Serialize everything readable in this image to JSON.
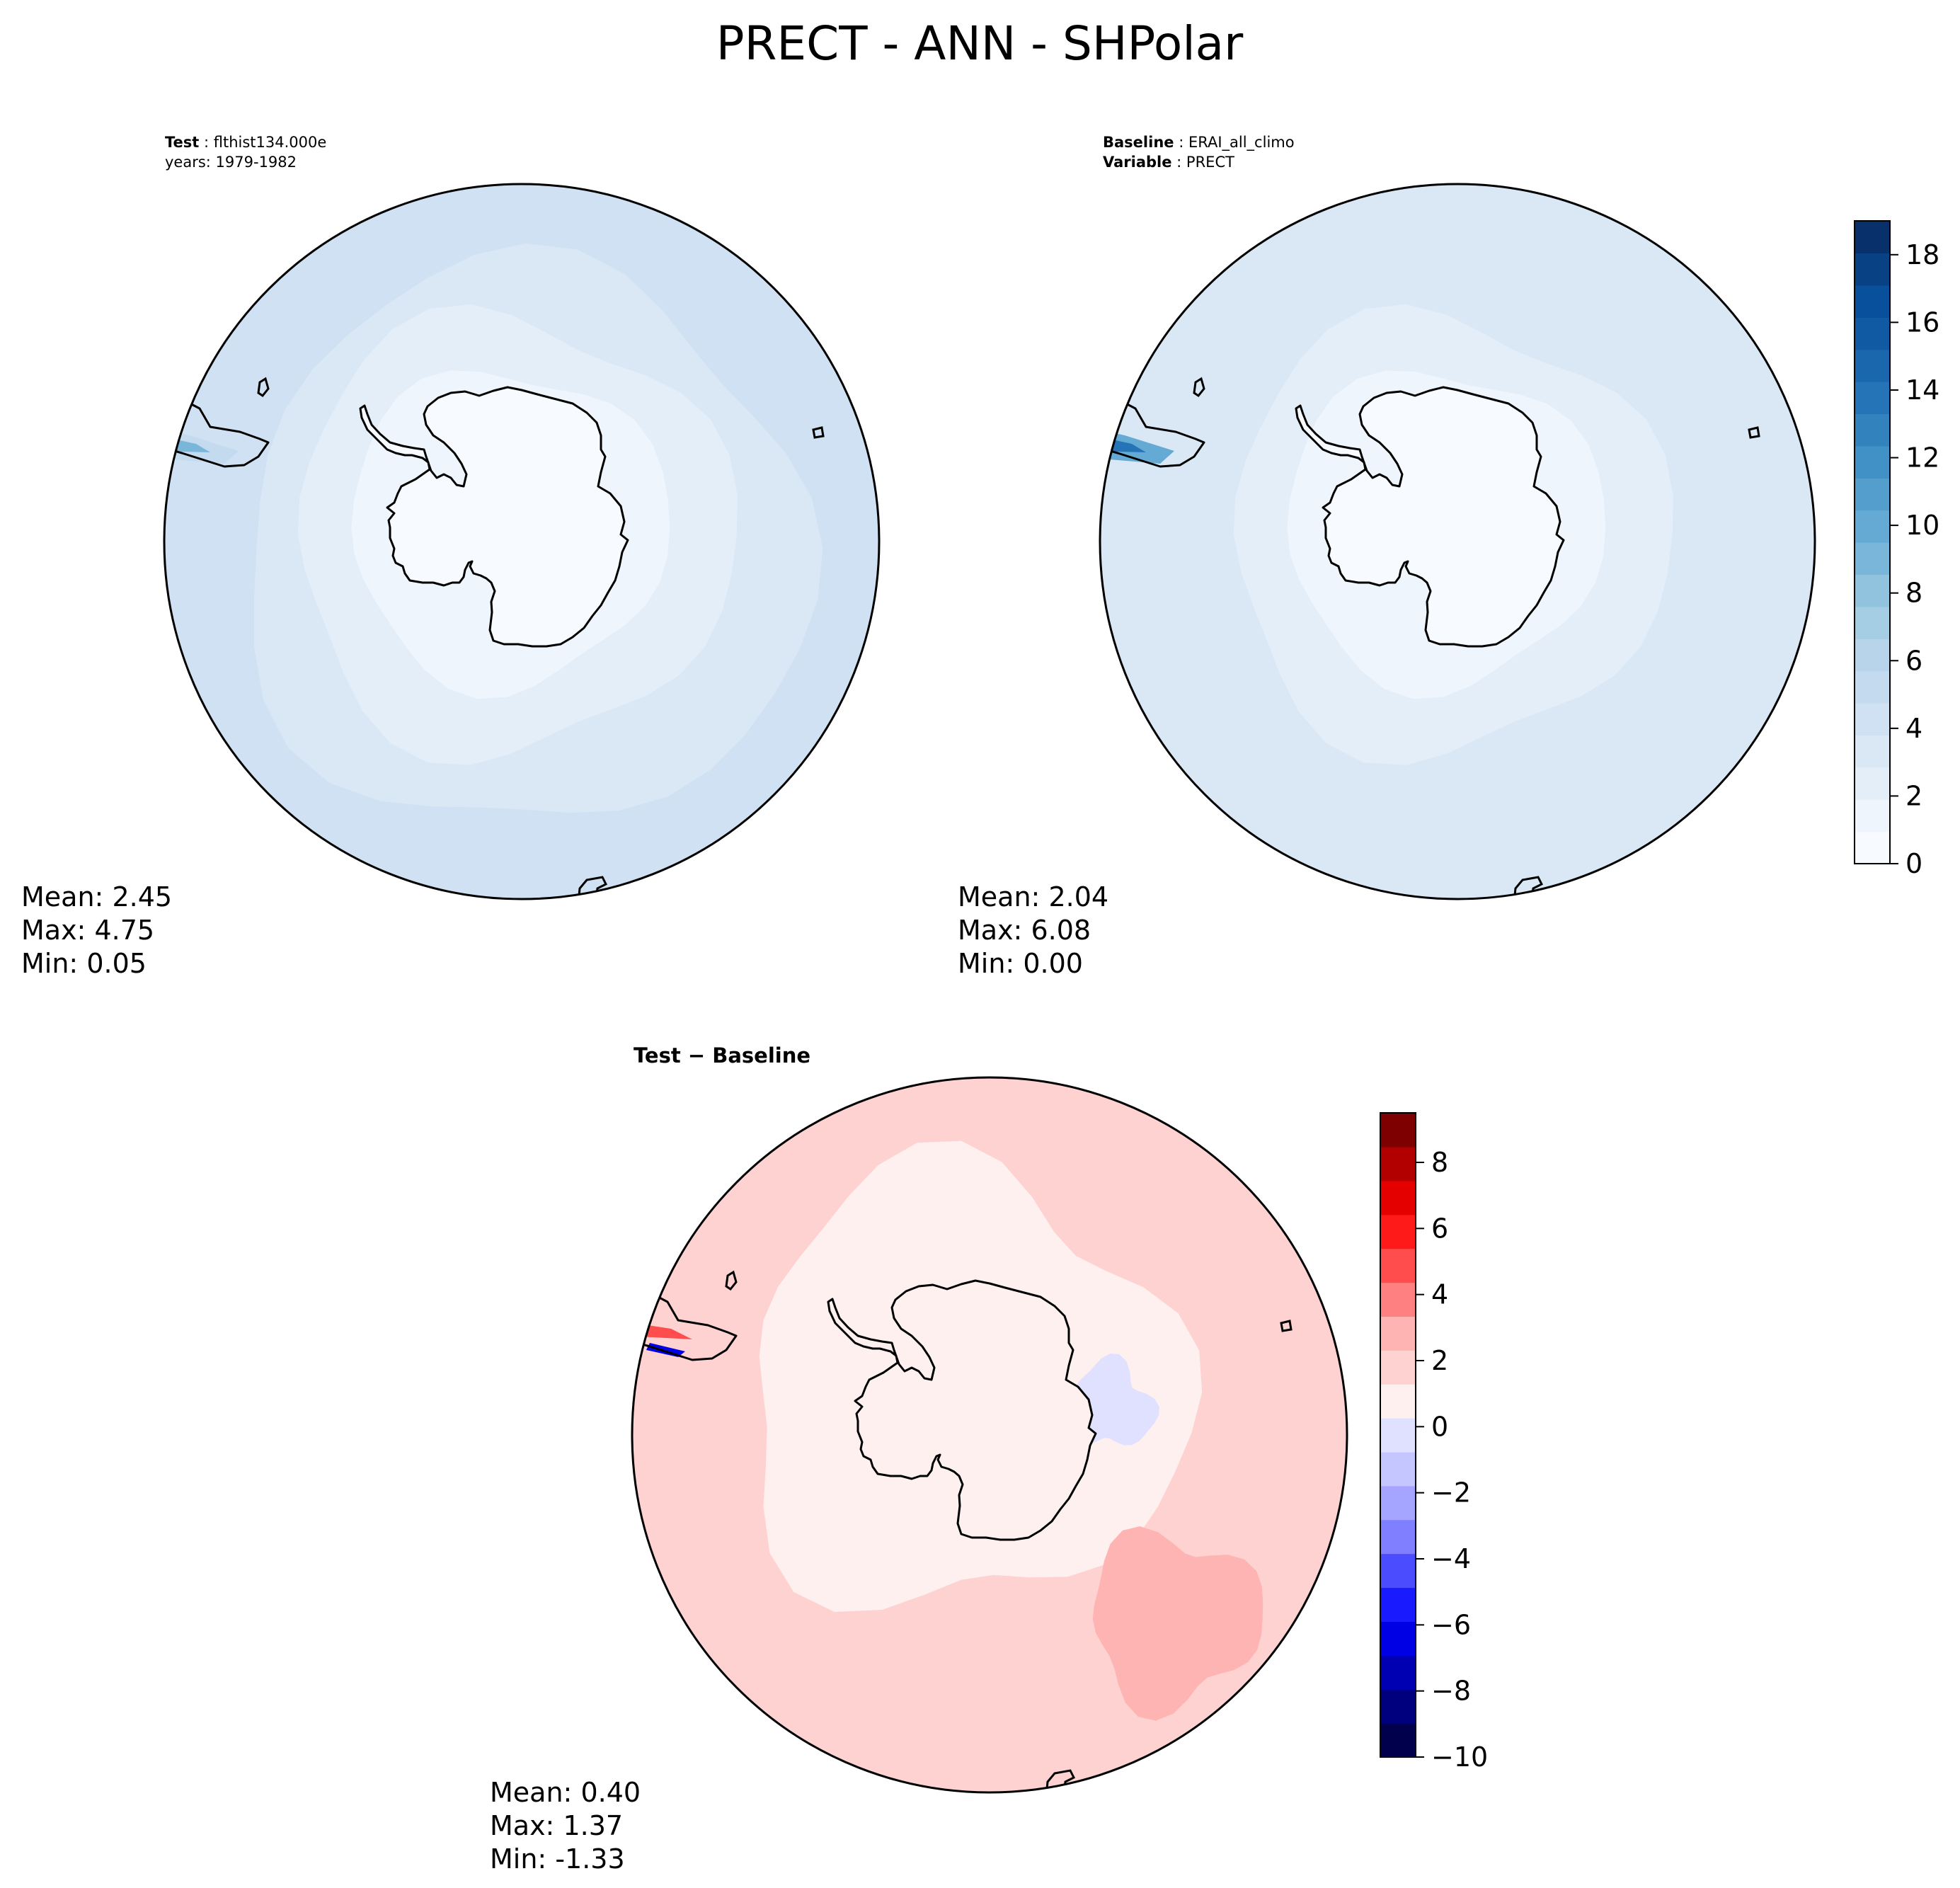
{
  "title": "PRECT - ANN - SHPolar",
  "colors": {
    "blues_scale": [
      "#f7fbff",
      "#eef5fc",
      "#e3eef9",
      "#dae8f6",
      "#cfe1f2",
      "#c4daee",
      "#b7d4ea",
      "#a5cde3",
      "#91c3de",
      "#7ab6d9",
      "#65aad4",
      "#539ecd",
      "#4191c6",
      "#3282be",
      "#2474b7",
      "#1a67ad",
      "#0f5aa3",
      "#08509b",
      "#084184",
      "#08306b"
    ],
    "diff_scale": [
      "#00004c",
      "#00007f",
      "#0000b2",
      "#0000e5",
      "#1a1aff",
      "#4c4cff",
      "#7f7fff",
      "#a5a5ff",
      "#c5c5ff",
      "#e0e0ff",
      "#fff0f0",
      "#ffd2d2",
      "#ffb4b4",
      "#ff8080",
      "#ff4c4c",
      "#ff1a1a",
      "#e50000",
      "#b20000",
      "#7f0000"
    ]
  },
  "chart_data": [
    {
      "type": "heatmap",
      "projection": "south-polar-stereographic",
      "panel": "test",
      "header": [
        {
          "key": "Test",
          "value": "flthist134.000e"
        },
        {
          "key": "",
          "value": "years: 1979-1982"
        }
      ],
      "stats": {
        "mean_label": "Mean:",
        "mean": "2.45",
        "max_label": "Max:",
        "max": "4.75",
        "min_label": "Min:",
        "min": "0.05"
      },
      "colormap": "Blues",
      "field_levels": {
        "ocean_outer": 4,
        "ocean_mid": 3,
        "ocean_inner": 2,
        "antarctica": 1,
        "andes_max": 9
      }
    },
    {
      "type": "heatmap",
      "projection": "south-polar-stereographic",
      "panel": "baseline",
      "header": [
        {
          "key": "Baseline",
          "value": "ERAI_all_climo"
        },
        {
          "key": "Variable",
          "value": "PRECT"
        }
      ],
      "stats": {
        "mean_label": "Mean:",
        "mean": "2.04",
        "max_label": "Max:",
        "max": "6.08",
        "min_label": "Min:",
        "min": "0.00"
      },
      "colormap": "Blues",
      "colorbar": {
        "vmin": 0,
        "vmax": 19,
        "levels": 20,
        "ticks": [
          0,
          2,
          4,
          6,
          8,
          10,
          12,
          14,
          16,
          18
        ]
      },
      "field_levels": {
        "ocean_outer": 3,
        "ocean_mid": 3,
        "ocean_inner": 2,
        "antarctica": 1,
        "andes_max": 14
      }
    },
    {
      "type": "heatmap",
      "projection": "south-polar-stereographic",
      "panel": "difference",
      "header": [
        {
          "key": "Test − Baseline",
          "value": ""
        }
      ],
      "stats": {
        "mean_label": "Mean:",
        "mean": "0.40",
        "max_label": "Max:",
        "max": "1.37",
        "min_label": "Min:",
        "min": "-1.33"
      },
      "colormap": "seismic",
      "colorbar": {
        "vmin": -10,
        "vmax": 9.5,
        "levels": 19,
        "ticks": [
          -10,
          -8,
          -6,
          -4,
          -2,
          0,
          2,
          4,
          6,
          8
        ]
      }
    }
  ]
}
